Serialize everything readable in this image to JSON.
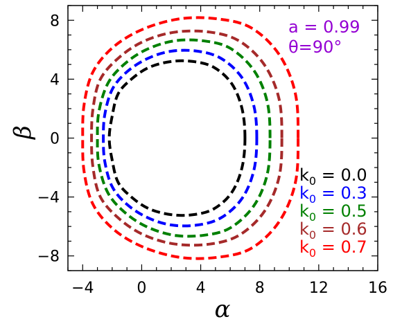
{
  "chart_data": {
    "type": "line",
    "title": "",
    "xlabel": "α",
    "ylabel": "β",
    "xlim": [
      -5,
      16
    ],
    "ylim": [
      -9,
      9
    ],
    "xticks": [
      -4,
      0,
      4,
      8,
      12,
      16
    ],
    "yticks": [
      -8,
      -4,
      0,
      4,
      8
    ],
    "xtick_labels": [
      "−4",
      "0",
      "4",
      "8",
      "12",
      "16"
    ],
    "ytick_labels": [
      "−8",
      "−4",
      "0",
      "4",
      "8"
    ],
    "grid": false,
    "legend_placement": "bottom-right",
    "line_style": "dashed",
    "annotation": {
      "line1": "a = 0.99",
      "line2": "θ=90°",
      "color": "#9400d3"
    },
    "series": [
      {
        "name": "k0 = 0.0",
        "label_base": "k",
        "label_sub": "0",
        "label_rest": " = 0.0",
        "color": "#000000",
        "points": [
          [
            7.0,
            0.0
          ],
          [
            6.8,
            2.0
          ],
          [
            6.1,
            3.7
          ],
          [
            4.9,
            4.8
          ],
          [
            3.5,
            5.2
          ],
          [
            2.0,
            5.2
          ],
          [
            0.5,
            4.8
          ],
          [
            -0.7,
            4.0
          ],
          [
            -1.6,
            3.0
          ],
          [
            -2.0,
            1.5
          ],
          [
            -2.2,
            0.0
          ],
          [
            -2.0,
            -1.5
          ],
          [
            -1.6,
            -3.0
          ],
          [
            -0.7,
            -4.0
          ],
          [
            0.5,
            -4.8
          ],
          [
            2.0,
            -5.2
          ],
          [
            3.5,
            -5.2
          ],
          [
            4.9,
            -4.8
          ],
          [
            6.1,
            -3.7
          ],
          [
            6.8,
            -2.0
          ],
          [
            7.0,
            0.0
          ]
        ]
      },
      {
        "name": "k0 = 0.3",
        "label_base": "k",
        "label_sub": "0",
        "label_rest": " = 0.3",
        "color": "#0000ff",
        "points": [
          [
            7.8,
            0.0
          ],
          [
            7.6,
            2.2
          ],
          [
            6.8,
            4.1
          ],
          [
            5.4,
            5.4
          ],
          [
            3.8,
            5.9
          ],
          [
            2.0,
            5.9
          ],
          [
            0.4,
            5.4
          ],
          [
            -1.0,
            4.5
          ],
          [
            -2.0,
            3.3
          ],
          [
            -2.5,
            1.6
          ],
          [
            -2.6,
            0.0
          ],
          [
            -2.5,
            -1.6
          ],
          [
            -2.0,
            -3.3
          ],
          [
            -1.0,
            -4.5
          ],
          [
            0.4,
            -5.4
          ],
          [
            2.0,
            -5.9
          ],
          [
            3.8,
            -5.9
          ],
          [
            5.4,
            -5.4
          ],
          [
            6.8,
            -4.1
          ],
          [
            7.6,
            -2.2
          ],
          [
            7.8,
            0.0
          ]
        ]
      },
      {
        "name": "k0 = 0.5",
        "label_base": "k",
        "label_sub": "0",
        "label_rest": " = 0.5",
        "color": "#008000",
        "points": [
          [
            8.7,
            0.0
          ],
          [
            8.5,
            2.5
          ],
          [
            7.6,
            4.6
          ],
          [
            6.0,
            6.1
          ],
          [
            4.2,
            6.6
          ],
          [
            2.2,
            6.6
          ],
          [
            0.3,
            6.0
          ],
          [
            -1.2,
            5.0
          ],
          [
            -2.3,
            3.7
          ],
          [
            -2.9,
            1.8
          ],
          [
            -3.0,
            0.0
          ],
          [
            -2.9,
            -1.8
          ],
          [
            -2.3,
            -3.7
          ],
          [
            -1.2,
            -5.0
          ],
          [
            0.3,
            -6.0
          ],
          [
            2.2,
            -6.6
          ],
          [
            4.2,
            -6.6
          ],
          [
            6.0,
            -6.1
          ],
          [
            7.6,
            -4.6
          ],
          [
            8.5,
            -2.5
          ],
          [
            8.7,
            0.0
          ]
        ]
      },
      {
        "name": "k0 = 0.6",
        "label_base": "k",
        "label_sub": "0",
        "label_rest": " = 0.6",
        "color": "#a52a2a",
        "points": [
          [
            9.5,
            0.0
          ],
          [
            9.3,
            2.7
          ],
          [
            8.3,
            5.0
          ],
          [
            6.6,
            6.6
          ],
          [
            4.6,
            7.2
          ],
          [
            2.3,
            7.2
          ],
          [
            0.2,
            6.6
          ],
          [
            -1.5,
            5.5
          ],
          [
            -2.8,
            4.0
          ],
          [
            -3.3,
            2.0
          ],
          [
            -3.4,
            0.0
          ],
          [
            -3.3,
            -2.0
          ],
          [
            -2.8,
            -4.0
          ],
          [
            -1.5,
            -5.5
          ],
          [
            0.2,
            -6.6
          ],
          [
            2.3,
            -7.2
          ],
          [
            4.6,
            -7.2
          ],
          [
            6.6,
            -6.6
          ],
          [
            8.3,
            -5.0
          ],
          [
            9.3,
            -2.7
          ],
          [
            9.5,
            0.0
          ]
        ]
      },
      {
        "name": "k0 = 0.7",
        "label_base": "k",
        "label_sub": "0",
        "label_rest": " = 0.7",
        "color": "#ff0000",
        "points": [
          [
            10.6,
            0.0
          ],
          [
            10.4,
            3.1
          ],
          [
            9.3,
            5.7
          ],
          [
            7.4,
            7.5
          ],
          [
            5.1,
            8.1
          ],
          [
            2.6,
            8.1
          ],
          [
            0.1,
            7.4
          ],
          [
            -1.9,
            6.2
          ],
          [
            -3.3,
            4.5
          ],
          [
            -3.9,
            2.3
          ],
          [
            -4.0,
            0.0
          ],
          [
            -3.9,
            -2.3
          ],
          [
            -3.3,
            -4.5
          ],
          [
            -1.9,
            -6.2
          ],
          [
            0.1,
            -7.4
          ],
          [
            2.6,
            -8.1
          ],
          [
            5.1,
            -8.1
          ],
          [
            7.4,
            -7.5
          ],
          [
            9.3,
            -5.7
          ],
          [
            10.4,
            -3.1
          ],
          [
            10.6,
            0.0
          ]
        ]
      }
    ]
  }
}
